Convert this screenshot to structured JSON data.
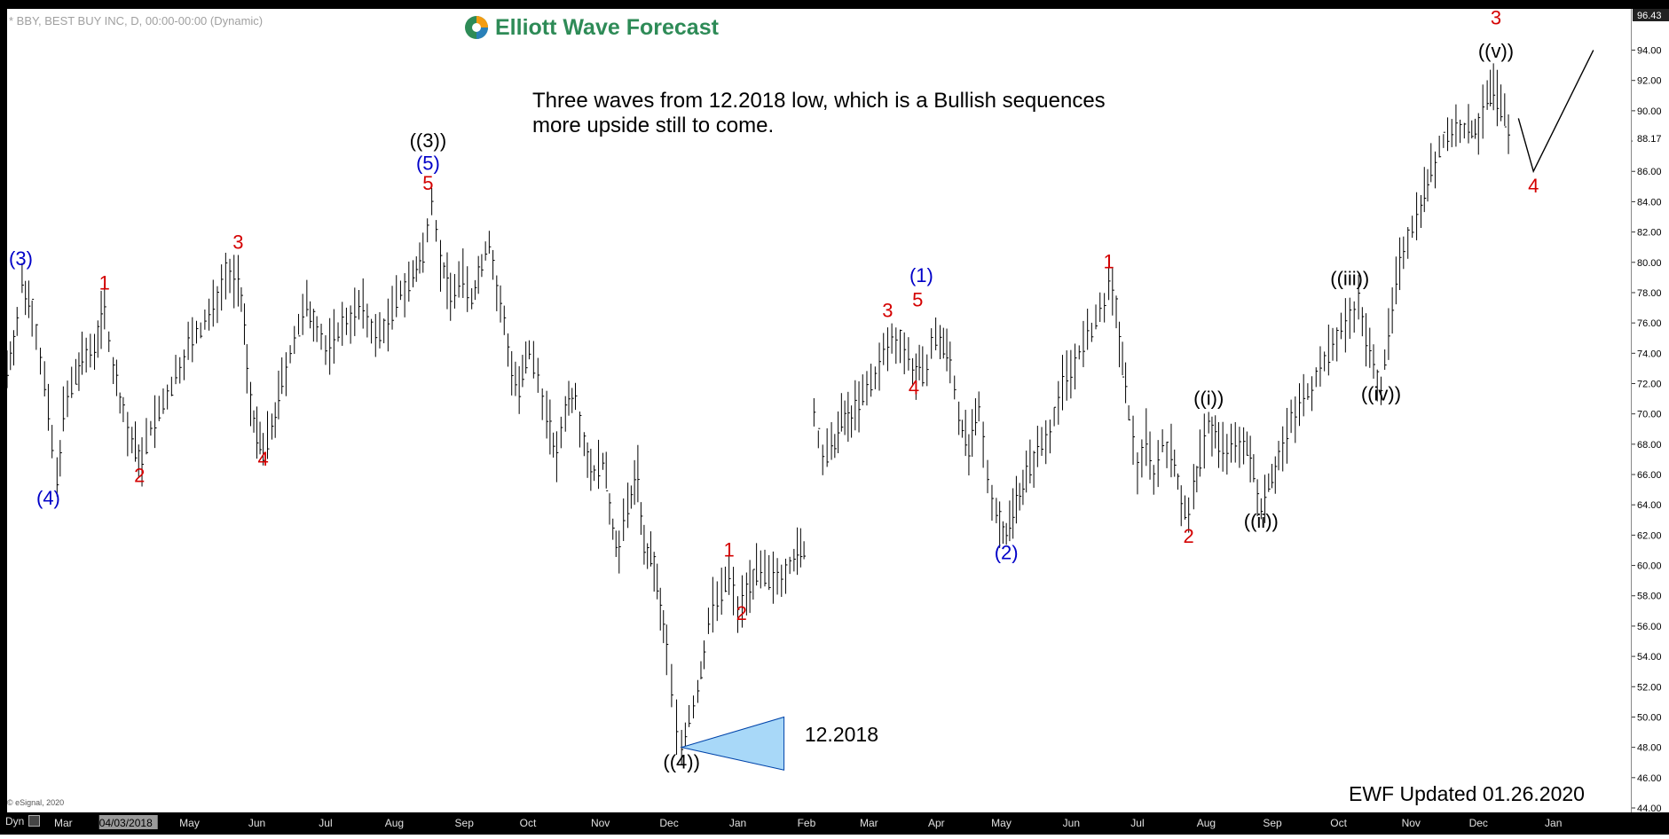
{
  "header": {
    "symbol_line": "* BBY, BEST BUY INC, D, 00:00-00:00 (Dynamic)",
    "logo_text": "Elliott Wave Forecast"
  },
  "annotation": {
    "line1": "Three waves from 12.2018 low, which is a Bullish sequences",
    "line2": "more upside still to come."
  },
  "footer": {
    "updated": "EWF  Updated 01.26.2020",
    "copyright": "© eSignal, 2020",
    "dyn": "Dyn"
  },
  "colors": {
    "red_label": "#d40000",
    "blue_label": "#0000c8",
    "black_label": "#000000",
    "triangle_fill": "#a8d8f8",
    "bars": "#000000",
    "logo_green": "#2e8b57"
  },
  "chart_data": {
    "type": "line",
    "ylim": [
      44,
      96.43
    ],
    "y_ticks": [
      44,
      46,
      48,
      50,
      52,
      54,
      56,
      58,
      60,
      62,
      64,
      66,
      68,
      70,
      72,
      74,
      76,
      78,
      80,
      82,
      84,
      86,
      88,
      90,
      92,
      94
    ],
    "y_tick_labels": [
      "44.00",
      "46.00",
      "48.00",
      "50.00",
      "52.00",
      "54.00",
      "56.00",
      "58.00",
      "60.00",
      "62.00",
      "64.00",
      "66.00",
      "68.00",
      "70.00",
      "72.00",
      "74.00",
      "76.00",
      "78.00",
      "80.00",
      "82.00",
      "84.00",
      "86.00",
      "88.00",
      "90.00",
      "92.00",
      "94.00"
    ],
    "last_price": "88.17",
    "last_price_value": 88.17,
    "top_price": "96.43",
    "x_labels": [
      {
        "t": 0.045,
        "label": "Mar"
      },
      {
        "t": 0.095,
        "label": "04/03/2018",
        "highlight": true
      },
      {
        "t": 0.146,
        "label": "May"
      },
      {
        "t": 0.2,
        "label": "Jun"
      },
      {
        "t": 0.255,
        "label": "Jul"
      },
      {
        "t": 0.31,
        "label": "Aug"
      },
      {
        "t": 0.366,
        "label": "Sep"
      },
      {
        "t": 0.417,
        "label": "Oct"
      },
      {
        "t": 0.475,
        "label": "Nov"
      },
      {
        "t": 0.53,
        "label": "Dec"
      },
      {
        "t": 0.585,
        "label": "Jan"
      },
      {
        "t": 0.64,
        "label": "Feb"
      },
      {
        "t": 0.69,
        "label": "Mar"
      },
      {
        "t": 0.744,
        "label": "Apr"
      },
      {
        "t": 0.796,
        "label": "May"
      },
      {
        "t": 0.852,
        "label": "Jun"
      },
      {
        "t": 0.905,
        "label": "Jul"
      },
      {
        "t": 0.96,
        "label": "Aug"
      },
      {
        "t": 1.013,
        "label": "Sep"
      },
      {
        "t": 1.066,
        "label": "Oct"
      },
      {
        "t": 1.124,
        "label": "Nov"
      },
      {
        "t": 1.178,
        "label": "Dec"
      },
      {
        "t": 1.238,
        "label": "Jan"
      }
    ],
    "x_range": [
      0,
      1.3
    ],
    "price_path": [
      [
        0.0,
        73
      ],
      [
        0.008,
        76
      ],
      [
        0.012,
        78.5
      ],
      [
        0.02,
        77
      ],
      [
        0.03,
        72
      ],
      [
        0.036,
        68
      ],
      [
        0.04,
        65.5
      ],
      [
        0.045,
        70
      ],
      [
        0.055,
        72.5
      ],
      [
        0.06,
        73.5
      ],
      [
        0.07,
        74.5
      ],
      [
        0.078,
        77
      ],
      [
        0.085,
        73
      ],
      [
        0.093,
        70
      ],
      [
        0.1,
        68
      ],
      [
        0.108,
        67
      ],
      [
        0.115,
        69
      ],
      [
        0.125,
        70.5
      ],
      [
        0.135,
        72.5
      ],
      [
        0.145,
        74.5
      ],
      [
        0.155,
        75.5
      ],
      [
        0.165,
        77
      ],
      [
        0.175,
        79.5
      ],
      [
        0.185,
        78.5
      ],
      [
        0.19,
        76
      ],
      [
        0.192,
        73
      ],
      [
        0.195,
        71
      ],
      [
        0.2,
        68.5
      ],
      [
        0.205,
        67.5
      ],
      [
        0.212,
        69
      ],
      [
        0.22,
        72
      ],
      [
        0.23,
        75
      ],
      [
        0.24,
        77
      ],
      [
        0.248,
        76
      ],
      [
        0.255,
        74
      ],
      [
        0.265,
        75.5
      ],
      [
        0.275,
        76.5
      ],
      [
        0.285,
        77
      ],
      [
        0.295,
        75
      ],
      [
        0.305,
        76
      ],
      [
        0.315,
        78
      ],
      [
        0.325,
        79
      ],
      [
        0.333,
        80.5
      ],
      [
        0.34,
        84.5
      ],
      [
        0.347,
        80
      ],
      [
        0.355,
        78
      ],
      [
        0.365,
        79
      ],
      [
        0.372,
        77.5
      ],
      [
        0.38,
        80
      ],
      [
        0.386,
        81.5
      ],
      [
        0.392,
        78
      ],
      [
        0.398,
        76
      ],
      [
        0.404,
        73
      ],
      [
        0.41,
        71.5
      ],
      [
        0.418,
        74
      ],
      [
        0.425,
        72.5
      ],
      [
        0.432,
        70
      ],
      [
        0.44,
        67
      ],
      [
        0.447,
        70.5
      ],
      [
        0.455,
        71.5
      ],
      [
        0.462,
        68
      ],
      [
        0.47,
        66
      ],
      [
        0.477,
        67
      ],
      [
        0.485,
        62.5
      ],
      [
        0.49,
        61
      ],
      [
        0.497,
        64
      ],
      [
        0.505,
        66
      ],
      [
        0.51,
        61
      ],
      [
        0.518,
        60
      ],
      [
        0.523,
        57
      ],
      [
        0.528,
        54.5
      ],
      [
        0.532,
        52
      ],
      [
        0.536,
        49.5
      ],
      [
        0.54,
        48
      ],
      [
        0.546,
        50
      ],
      [
        0.553,
        51.5
      ],
      [
        0.558,
        54.5
      ],
      [
        0.565,
        57.5
      ],
      [
        0.572,
        58
      ],
      [
        0.578,
        59.5
      ],
      [
        0.585,
        57
      ],
      [
        0.592,
        58.5
      ],
      [
        0.6,
        59.5
      ],
      [
        0.61,
        59
      ],
      [
        0.62,
        59.5
      ],
      [
        0.63,
        60.5
      ],
      [
        0.638,
        61
      ],
      [
        0.64,
        60
      ],
      [
        0.646,
        70
      ],
      [
        0.653,
        67
      ],
      [
        0.66,
        67.5
      ],
      [
        0.668,
        69.5
      ],
      [
        0.676,
        70
      ],
      [
        0.685,
        71
      ],
      [
        0.695,
        72.5
      ],
      [
        0.705,
        74.5
      ],
      [
        0.715,
        75
      ],
      [
        0.725,
        73
      ],
      [
        0.733,
        72.5
      ],
      [
        0.74,
        74.5
      ],
      [
        0.747,
        75
      ],
      [
        0.755,
        73.5
      ],
      [
        0.762,
        70
      ],
      [
        0.77,
        67.5
      ],
      [
        0.778,
        70
      ],
      [
        0.785,
        66
      ],
      [
        0.792,
        63.5
      ],
      [
        0.8,
        62
      ],
      [
        0.808,
        64.5
      ],
      [
        0.816,
        66
      ],
      [
        0.825,
        67.5
      ],
      [
        0.835,
        69
      ],
      [
        0.845,
        72
      ],
      [
        0.855,
        73.5
      ],
      [
        0.865,
        75
      ],
      [
        0.875,
        76.5
      ],
      [
        0.882,
        78.5
      ],
      [
        0.888,
        77
      ],
      [
        0.893,
        73
      ],
      [
        0.898,
        70
      ],
      [
        0.905,
        66.5
      ],
      [
        0.912,
        68.5
      ],
      [
        0.918,
        66
      ],
      [
        0.925,
        68
      ],
      [
        0.932,
        67.5
      ],
      [
        0.94,
        64.5
      ],
      [
        0.946,
        63
      ],
      [
        0.95,
        65
      ],
      [
        0.955,
        67
      ],
      [
        0.962,
        69.5
      ],
      [
        0.97,
        68
      ],
      [
        0.98,
        67.5
      ],
      [
        0.99,
        68.5
      ],
      [
        0.998,
        66
      ],
      [
        1.004,
        64
      ],
      [
        1.01,
        65.5
      ],
      [
        1.018,
        67
      ],
      [
        1.028,
        69.5
      ],
      [
        1.038,
        71
      ],
      [
        1.048,
        72.5
      ],
      [
        1.058,
        74
      ],
      [
        1.068,
        75.5
      ],
      [
        1.075,
        76.5
      ],
      [
        1.082,
        77.5
      ],
      [
        1.088,
        75
      ],
      [
        1.094,
        73
      ],
      [
        1.1,
        72
      ],
      [
        1.106,
        75
      ],
      [
        1.112,
        78.5
      ],
      [
        1.118,
        81
      ],
      [
        1.125,
        82.5
      ],
      [
        1.132,
        84
      ],
      [
        1.14,
        86
      ],
      [
        1.15,
        88
      ],
      [
        1.16,
        89
      ],
      [
        1.17,
        88.5
      ],
      [
        1.178,
        89
      ],
      [
        1.185,
        90.5
      ],
      [
        1.19,
        91.5
      ],
      [
        1.196,
        90
      ],
      [
        1.202,
        89
      ],
      [
        1.206,
        88.17
      ]
    ],
    "projection": [
      [
        1.21,
        89.5
      ],
      [
        1.222,
        86
      ],
      [
        1.27,
        94
      ]
    ],
    "triangle": {
      "points": [
        [
          0.54,
          48
        ],
        [
          0.622,
          50
        ],
        [
          0.622,
          46.5
        ]
      ]
    },
    "date_label": {
      "t": 0.63,
      "y": 48.4,
      "text": "12.2018"
    },
    "wave_labels": [
      {
        "t": 0.011,
        "y": 79.8,
        "text": "(3)",
        "color": "blue"
      },
      {
        "t": 0.033,
        "y": 64.0,
        "text": "(4)",
        "color": "blue"
      },
      {
        "t": 0.078,
        "y": 78.2,
        "text": "1",
        "color": "red"
      },
      {
        "t": 0.106,
        "y": 65.5,
        "text": "2",
        "color": "red"
      },
      {
        "t": 0.185,
        "y": 80.9,
        "text": "3",
        "color": "red"
      },
      {
        "t": 0.205,
        "y": 66.6,
        "text": "4",
        "color": "red"
      },
      {
        "t": 0.337,
        "y": 87.6,
        "text": "((3))",
        "color": "black"
      },
      {
        "t": 0.337,
        "y": 86.1,
        "text": "(5)",
        "color": "blue"
      },
      {
        "t": 0.337,
        "y": 84.8,
        "text": "5",
        "color": "red"
      },
      {
        "t": 0.54,
        "y": 46.6,
        "text": "((4))",
        "color": "black"
      },
      {
        "t": 0.578,
        "y": 60.6,
        "text": "1",
        "color": "red"
      },
      {
        "t": 0.588,
        "y": 56.4,
        "text": "2",
        "color": "red"
      },
      {
        "t": 0.705,
        "y": 76.4,
        "text": "3",
        "color": "red"
      },
      {
        "t": 0.729,
        "y": 77.1,
        "text": "5",
        "color": "red"
      },
      {
        "t": 0.732,
        "y": 78.7,
        "text": "(1)",
        "color": "blue"
      },
      {
        "t": 0.726,
        "y": 71.3,
        "text": "4",
        "color": "red"
      },
      {
        "t": 0.8,
        "y": 60.4,
        "text": "(2)",
        "color": "blue"
      },
      {
        "t": 0.882,
        "y": 79.6,
        "text": "1",
        "color": "red"
      },
      {
        "t": 0.946,
        "y": 61.5,
        "text": "2",
        "color": "red"
      },
      {
        "t": 0.962,
        "y": 70.6,
        "text": "((i))",
        "color": "black"
      },
      {
        "t": 1.004,
        "y": 62.5,
        "text": "((ii))",
        "color": "black"
      },
      {
        "t": 1.075,
        "y": 78.5,
        "text": "((iii))",
        "color": "black"
      },
      {
        "t": 1.1,
        "y": 70.9,
        "text": "((iv))",
        "color": "black"
      },
      {
        "t": 1.192,
        "y": 93.5,
        "text": "((v))",
        "color": "black"
      },
      {
        "t": 1.192,
        "y": 95.7,
        "text": "3",
        "color": "red"
      },
      {
        "t": 1.222,
        "y": 84.6,
        "text": "4",
        "color": "red"
      }
    ]
  }
}
